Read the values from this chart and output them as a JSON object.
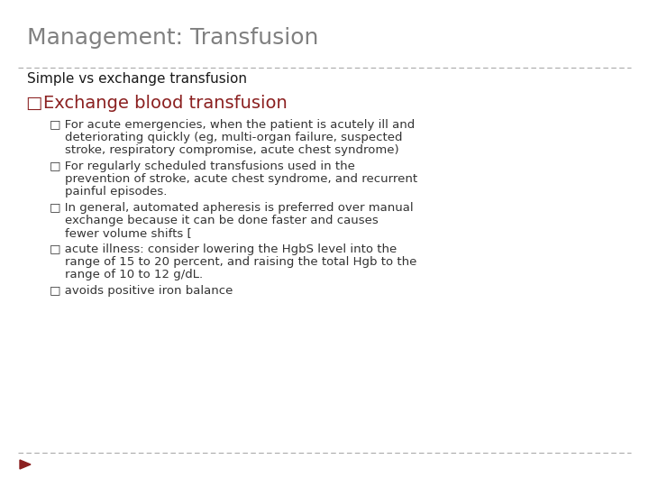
{
  "title": "Management: Transfusion",
  "title_color": "#808080",
  "title_fontsize": 18,
  "background_color": "#ffffff",
  "dashed_line_color": "#aaaaaa",
  "subtitle": "Simple vs exchange transfusion",
  "subtitle_fontsize": 11,
  "subtitle_color": "#1a1a1a",
  "level1_bullet": "□",
  "level1_text": "Exchange blood transfusion",
  "level1_color": "#8B2020",
  "level1_fontsize": 14,
  "level2_bullets": [
    [
      "□ For acute emergencies, when the patient is acutely ill and",
      "    deteriorating quickly (eg, multi-organ failure, suspected",
      "    stroke, respiratory compromise, acute chest syndrome)"
    ],
    [
      "□ For regularly scheduled transfusions used in the",
      "    prevention of stroke, acute chest syndrome, and recurrent",
      "    painful episodes."
    ],
    [
      "□ In general, automated apheresis is preferred over manual",
      "    exchange because it can be done faster and causes",
      "    fewer volume shifts ["
    ],
    [
      "□ acute illness: consider lowering the HgbS level into the",
      "    range of 15 to 20 percent, and raising the total Hgb to the",
      "    range of 10 to 12 g/dL."
    ],
    [
      "□ avoids positive iron balance"
    ]
  ],
  "level2_color": "#333333",
  "level2_fontsize": 9.5,
  "arrow_color": "#8B2020",
  "bottom_line_color": "#aaaaaa"
}
